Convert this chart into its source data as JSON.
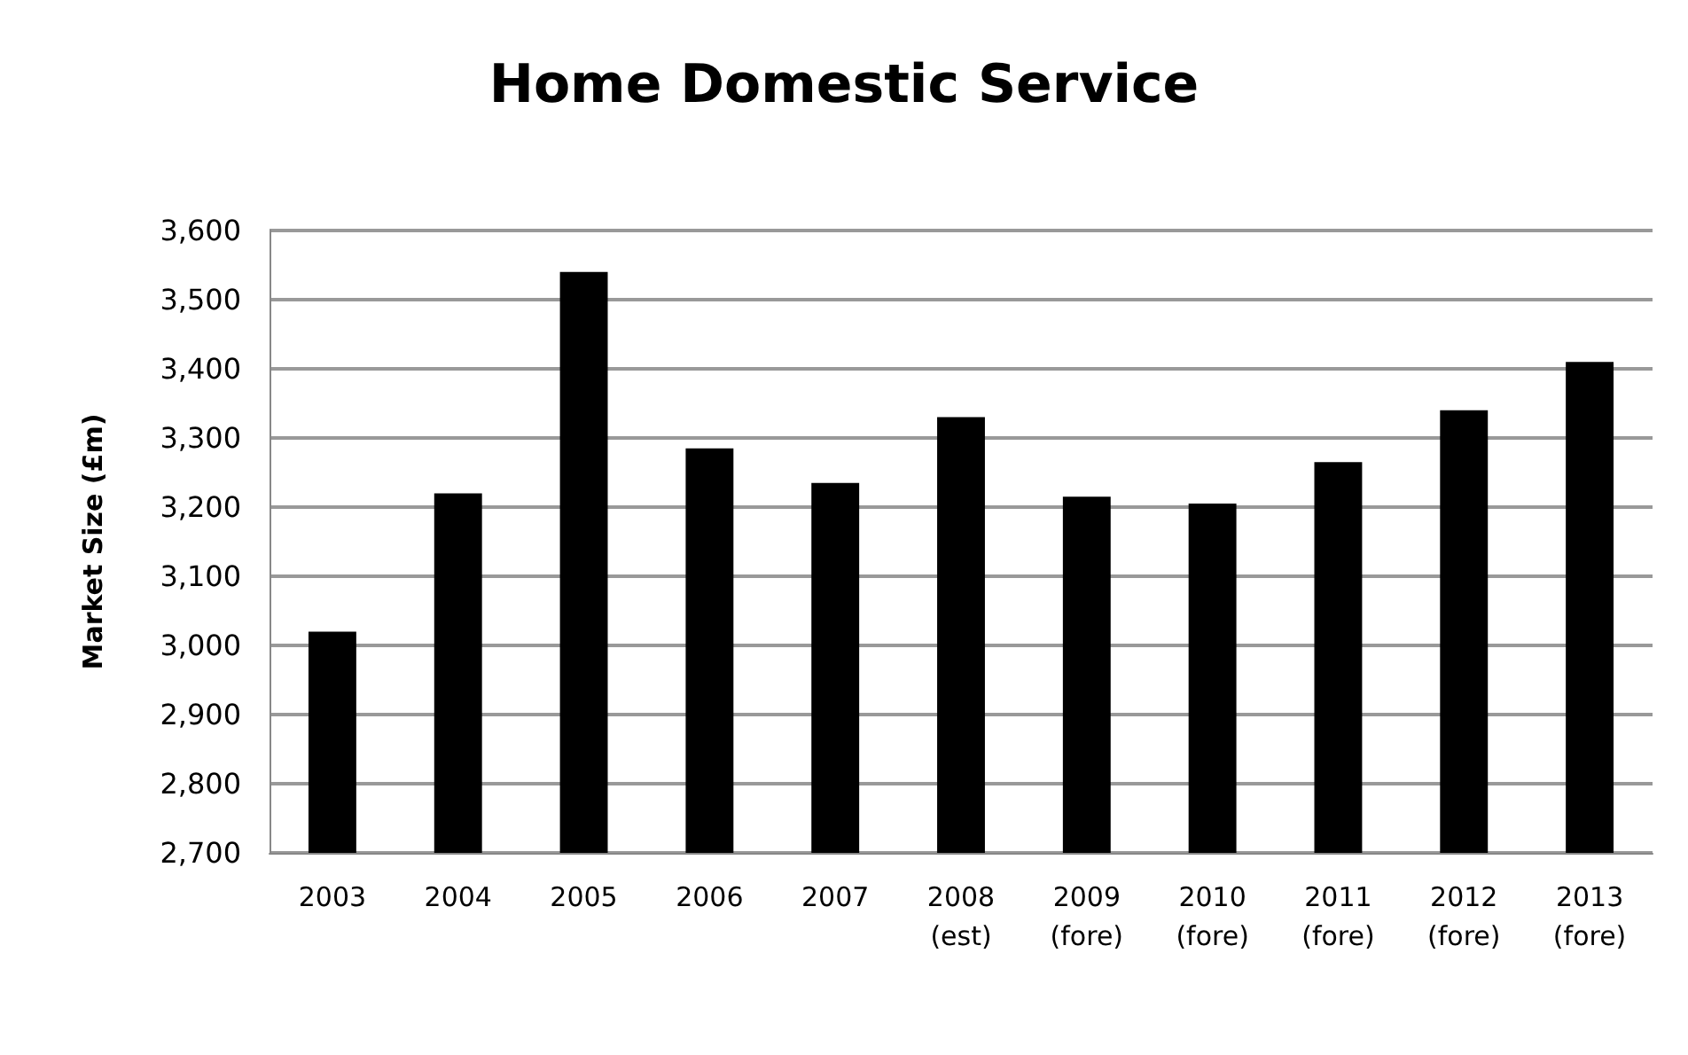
{
  "chart_data": {
    "type": "bar",
    "title": "Home Domestic Service",
    "ylabel": "Market Size (£m)",
    "categories": [
      "2003",
      "2004",
      "2005",
      "2006",
      "2007",
      "2008\n(est)",
      "2009\n(fore)",
      "2010\n(fore)",
      "2011\n(fore)",
      "2012\n(fore)",
      "2013\n(fore)"
    ],
    "values": [
      3020,
      3220,
      3540,
      3285,
      3235,
      3330,
      3215,
      3205,
      3265,
      3340,
      3410
    ],
    "color": "#000000",
    "ylim": [
      2700,
      3600
    ],
    "yticks": [
      {
        "value": 2700,
        "label": "2,700"
      },
      {
        "value": 2800,
        "label": "2,800"
      },
      {
        "value": 2900,
        "label": "2,900"
      },
      {
        "value": 3000,
        "label": "3,000"
      },
      {
        "value": 3100,
        "label": "3,100"
      },
      {
        "value": 3200,
        "label": "3,200"
      },
      {
        "value": 3300,
        "label": "3,300"
      },
      {
        "value": 3400,
        "label": "3,400"
      },
      {
        "value": 3500,
        "label": "3,500"
      },
      {
        "value": 3600,
        "label": "3,600"
      }
    ],
    "grid": "y"
  }
}
